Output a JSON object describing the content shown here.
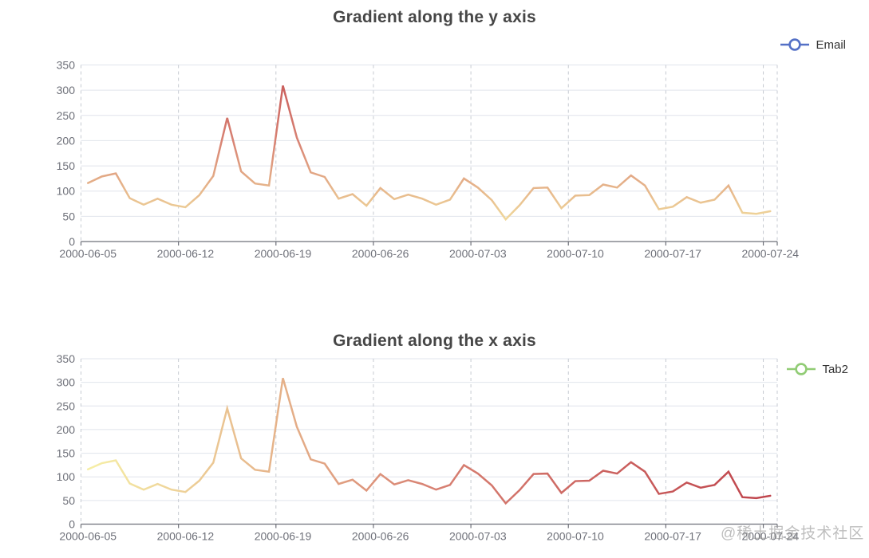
{
  "watermark": "@稀土掘金技术社区",
  "colors": {
    "visualmap_gradient": [
      "#f6efa6",
      "#d88273",
      "#bf444c"
    ],
    "legend_email": "#5470c6",
    "legend_tab2": "#91cc75",
    "title_text": "#464646",
    "axis_text": "#6E7079",
    "axis_line": "#6E7079",
    "grid_horizontal": "#e0e4ec",
    "grid_vertical_dashed": "#c6cad1",
    "watermark_text": "#c5c5c5"
  },
  "chart_data": [
    {
      "type": "line",
      "title": "Gradient along the y axis",
      "legend": {
        "label": "Email",
        "color": "#5470c6",
        "symbol": "line-with-empty-circle",
        "position": "top-right"
      },
      "x": [
        "2000-06-05",
        "2000-06-06",
        "2000-06-07",
        "2000-06-08",
        "2000-06-09",
        "2000-06-10",
        "2000-06-11",
        "2000-06-12",
        "2000-06-13",
        "2000-06-14",
        "2000-06-15",
        "2000-06-16",
        "2000-06-17",
        "2000-06-18",
        "2000-06-19",
        "2000-06-20",
        "2000-06-21",
        "2000-06-22",
        "2000-06-23",
        "2000-06-24",
        "2000-06-25",
        "2000-06-26",
        "2000-06-27",
        "2000-06-28",
        "2000-06-29",
        "2000-06-30",
        "2000-07-01",
        "2000-07-02",
        "2000-07-03",
        "2000-07-04",
        "2000-07-05",
        "2000-07-06",
        "2000-07-07",
        "2000-07-08",
        "2000-07-09",
        "2000-07-10",
        "2000-07-11",
        "2000-07-12",
        "2000-07-13",
        "2000-07-14",
        "2000-07-15",
        "2000-07-16",
        "2000-07-17",
        "2000-07-18",
        "2000-07-19",
        "2000-07-20",
        "2000-07-21",
        "2000-07-22",
        "2000-07-23",
        "2000-07-24"
      ],
      "series": [
        {
          "name": "Email",
          "values": [
            116,
            129,
            135,
            86,
            73,
            85,
            73,
            68,
            92,
            130,
            245,
            139,
            115,
            111,
            309,
            206,
            137,
            128,
            85,
            94,
            71,
            106,
            84,
            93,
            85,
            73,
            83,
            125,
            107,
            82,
            44,
            72,
            106,
            107,
            66,
            91,
            92,
            113,
            107,
            131,
            111,
            64,
            69,
            88,
            77,
            83,
            111,
            57,
            55,
            60
          ]
        }
      ],
      "xlabel": "",
      "ylabel": "",
      "ylim": [
        0,
        350
      ],
      "ytick_step": 50,
      "xtick_labels": [
        "2000-06-05",
        "2000-06-12",
        "2000-06-19",
        "2000-06-26",
        "2000-07-03",
        "2000-07-10",
        "2000-07-17",
        "2000-07-24"
      ],
      "xtick_every": 7,
      "grid": {
        "horizontal": "solid",
        "vertical": "dashed"
      },
      "gradient": {
        "along": "y",
        "domain": [
          0,
          400
        ],
        "colors": [
          "#f6efa6",
          "#d88273",
          "#bf444c"
        ]
      },
      "smooth": false,
      "show_symbols": false
    },
    {
      "type": "line",
      "title": "Gradient along the x axis",
      "legend": {
        "label": "Tab2",
        "color": "#91cc75",
        "symbol": "line-with-empty-circle",
        "position": "top-right"
      },
      "x": [
        "2000-06-05",
        "2000-06-06",
        "2000-06-07",
        "2000-06-08",
        "2000-06-09",
        "2000-06-10",
        "2000-06-11",
        "2000-06-12",
        "2000-06-13",
        "2000-06-14",
        "2000-06-15",
        "2000-06-16",
        "2000-06-17",
        "2000-06-18",
        "2000-06-19",
        "2000-06-20",
        "2000-06-21",
        "2000-06-22",
        "2000-06-23",
        "2000-06-24",
        "2000-06-25",
        "2000-06-26",
        "2000-06-27",
        "2000-06-28",
        "2000-06-29",
        "2000-06-30",
        "2000-07-01",
        "2000-07-02",
        "2000-07-03",
        "2000-07-04",
        "2000-07-05",
        "2000-07-06",
        "2000-07-07",
        "2000-07-08",
        "2000-07-09",
        "2000-07-10",
        "2000-07-11",
        "2000-07-12",
        "2000-07-13",
        "2000-07-14",
        "2000-07-15",
        "2000-07-16",
        "2000-07-17",
        "2000-07-18",
        "2000-07-19",
        "2000-07-20",
        "2000-07-21",
        "2000-07-22",
        "2000-07-23",
        "2000-07-24"
      ],
      "series": [
        {
          "name": "Tab2",
          "values": [
            116,
            129,
            135,
            86,
            73,
            85,
            73,
            68,
            92,
            130,
            245,
            139,
            115,
            111,
            309,
            206,
            137,
            128,
            85,
            94,
            71,
            106,
            84,
            93,
            85,
            73,
            83,
            125,
            107,
            82,
            44,
            72,
            106,
            107,
            66,
            91,
            92,
            113,
            107,
            131,
            111,
            64,
            69,
            88,
            77,
            83,
            111,
            57,
            55,
            60
          ]
        }
      ],
      "xlabel": "",
      "ylabel": "",
      "ylim": [
        0,
        350
      ],
      "ytick_step": 50,
      "xtick_labels": [
        "2000-06-05",
        "2000-06-12",
        "2000-06-19",
        "2000-06-26",
        "2000-07-03",
        "2000-07-10",
        "2000-07-17",
        "2000-07-24"
      ],
      "xtick_every": 7,
      "grid": {
        "horizontal": "solid",
        "vertical": "dashed"
      },
      "gradient": {
        "along": "x",
        "domain": [
          0,
          49
        ],
        "colors": [
          "#f6efa6",
          "#d88273",
          "#bf444c"
        ]
      },
      "smooth": false,
      "show_symbols": false
    }
  ]
}
